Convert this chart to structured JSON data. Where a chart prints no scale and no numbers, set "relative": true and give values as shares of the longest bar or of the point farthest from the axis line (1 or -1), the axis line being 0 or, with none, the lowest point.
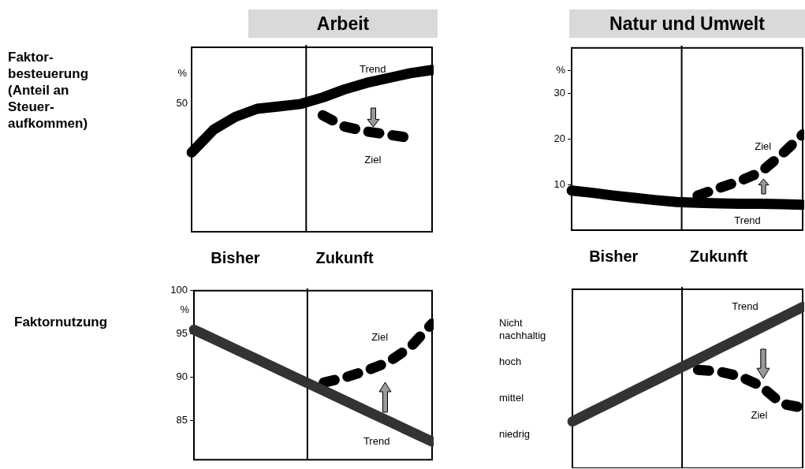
{
  "chart_data": [
    {
      "type": "line",
      "title": "Arbeit",
      "ylabel": "%",
      "annotations": [
        "Faktor-besteuerung (Anteil an Steuer-aufkommen)",
        "50"
      ],
      "relative": true,
      "categories": [
        null,
        null,
        "Bisher",
        null,
        null,
        null,
        null,
        "Zukunft",
        null,
        null,
        null,
        null
      ],
      "grid": false,
      "legend": false,
      "marker": "none",
      "series": [
        {
          "name": "Trend",
          "color": "#000000",
          "line_style": "solid",
          "values": [
            0.49,
            0.63,
            0.71,
            0.76,
            0.775,
            0.79,
            0.83,
            0.88,
            0.92,
            0.95,
            0.98,
            1
          ]
        },
        {
          "name": "Ziel",
          "color": "#000000",
          "line_style": "dashed",
          "values": [
            null,
            null,
            null,
            null,
            null,
            null,
            0.72,
            0.65,
            0.62,
            0.6,
            0.58,
            null
          ]
        }
      ]
    },
    {
      "type": "line",
      "title": "Natur und Umwelt",
      "categories": [
        null,
        null,
        "Bisher",
        null,
        null,
        null,
        null,
        "Zukunft",
        null,
        null,
        null,
        null
      ],
      "ylim": [
        0,
        40
      ],
      "yticks": [
        10,
        20,
        30,
        {
          "value": 35,
          "label": "%"
        }
      ],
      "grid": false,
      "legend": false,
      "marker": "none",
      "series": [
        {
          "name": "Trend",
          "color": "#000000",
          "line_style": "solid",
          "values": [
            8.7,
            8.2,
            7.6,
            7.1,
            6.6,
            6.2,
            6,
            5.9,
            5.8,
            5.8,
            5.7,
            5.6
          ]
        },
        {
          "name": "Ziel",
          "color": "#000000",
          "line_style": "dashed",
          "values": [
            null,
            null,
            null,
            null,
            null,
            null,
            7.6,
            9.2,
            10.8,
            12.7,
            16.6,
            21
          ]
        }
      ]
    },
    {
      "type": "line",
      "ylabel": "%",
      "annotations": [
        "Faktornutzung"
      ],
      "categories": [
        null,
        null,
        null,
        null,
        null,
        null,
        null,
        null,
        null,
        null,
        null,
        null
      ],
      "ylim": [
        80.5,
        100
      ],
      "yticks": [
        85,
        90,
        95,
        100
      ],
      "tick_labels": "y",
      "grid": false,
      "legend": false,
      "marker": "none",
      "series": [
        {
          "name": "Trend",
          "color": "#333333",
          "line_style": "solid",
          "values": [
            95.5,
            94.33,
            93.15,
            91.98,
            90.8,
            89.63,
            88.46,
            87.28,
            86.11,
            84.93,
            83.76,
            82.59
          ]
        },
        {
          "name": "Ziel",
          "color": "#000000",
          "line_style": "dashed",
          "values": [
            null,
            null,
            null,
            null,
            null,
            null,
            89.4,
            90,
            90.8,
            91.8,
            93.5,
            96.2
          ]
        }
      ]
    },
    {
      "type": "line",
      "annotations": [
        "Nicht nachhaltig",
        "hoch",
        "mittel",
        "niedrig"
      ],
      "relative": true,
      "categories": [
        null,
        null,
        null,
        null,
        null,
        null,
        null,
        null,
        null,
        null,
        null,
        null
      ],
      "tick_labels": false,
      "grid": false,
      "legend": false,
      "marker": "none",
      "series": [
        {
          "name": "Trend",
          "color": "#333333",
          "line_style": "solid",
          "values": [
            0.29,
            0.355,
            0.419,
            0.484,
            0.548,
            0.613,
            0.677,
            0.742,
            0.806,
            0.871,
            0.935,
            1
          ]
        },
        {
          "name": "Ziel",
          "color": "#000000",
          "line_style": "dashed",
          "values": [
            null,
            null,
            null,
            null,
            null,
            null,
            0.61,
            0.6,
            0.57,
            0.51,
            0.4,
            0.375
          ]
        }
      ]
    }
  ]
}
